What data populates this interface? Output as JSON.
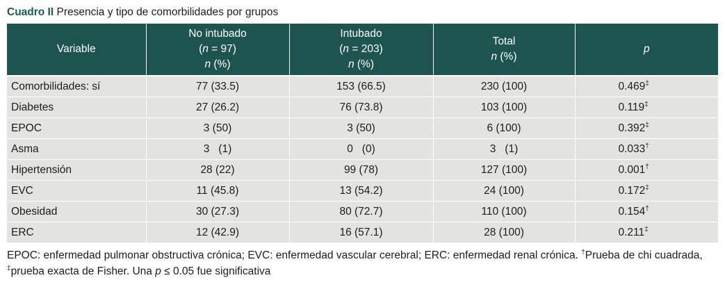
{
  "caption": {
    "label": "Cuadro II",
    "title": " Presencia y tipo de comorbilidades por grupos"
  },
  "header": {
    "variable": "Variable",
    "col1": {
      "line1": "No intubado",
      "n_open": "(",
      "n_var": "n",
      "n_value": " = 97)",
      "pct_var": "n",
      "pct_unit": " (%)"
    },
    "col2": {
      "line1": "Intubado",
      "n_open": "(",
      "n_var": "n",
      "n_value": " = 203)",
      "pct_var": "n",
      "pct_unit": " (%)"
    },
    "col3": {
      "line1": "Total",
      "pct_var": "n",
      "pct_unit": " (%)"
    },
    "p": "p"
  },
  "rows": [
    {
      "variable": "Comorbilidades: sí",
      "no_intubado": "77 (33.5)",
      "intubado": "153 (66.5)",
      "total": "230 (100)",
      "p": "0.469",
      "mark": "‡"
    },
    {
      "variable": "Diabetes",
      "no_intubado": "27 (26.2)",
      "intubado": "76 (73.8)",
      "total": "103 (100)",
      "p": "0.119",
      "mark": "‡"
    },
    {
      "variable": "EPOC",
      "no_intubado": "3 (50)",
      "intubado": "3 (50)",
      "total": "6 (100)",
      "p": "0.392",
      "mark": "‡"
    },
    {
      "variable": "Asma",
      "no_intubado": "3   (1)",
      "intubado": "0   (0)",
      "total": "3   (1)",
      "p": "0.033",
      "mark": "†"
    },
    {
      "variable": "Hipertensión",
      "no_intubado": "28 (22)",
      "intubado": "99 (78)",
      "total": "127 (100)",
      "p": "0.001",
      "mark": "†"
    },
    {
      "variable": "EVC",
      "no_intubado": "11 (45.8)",
      "intubado": "13 (54.2)",
      "total": "24 (100)",
      "p": "0.172",
      "mark": "‡"
    },
    {
      "variable": "Obesidad",
      "no_intubado": "30 (27.3)",
      "intubado": "80 (72.7)",
      "total": "110 (100)",
      "p": "0.154",
      "mark": "†"
    },
    {
      "variable": "ERC",
      "no_intubado": "12 (42.9)",
      "intubado": "16 (57.1)",
      "total": "28 (100)",
      "p": "0.211",
      "mark": "‡"
    }
  ],
  "footnote": {
    "abbrev": "EPOC: enfermedad pulmonar obstructiva crónica; EVC: enfermedad vascular cerebral; ERC: enfermedad renal crónica. ",
    "dagger": "†",
    "chi": "Prueba de chi cuadrada, ",
    "ddagger": "‡",
    "fisher": "prueba exacta de Fisher. Una ",
    "p": "p",
    "sig": " ≤ 0.05 fue significativa"
  },
  "colors": {
    "header_bg": "#1e5450",
    "cell_bg": "#e3e4e0",
    "caption_label": "#1c5a55"
  }
}
